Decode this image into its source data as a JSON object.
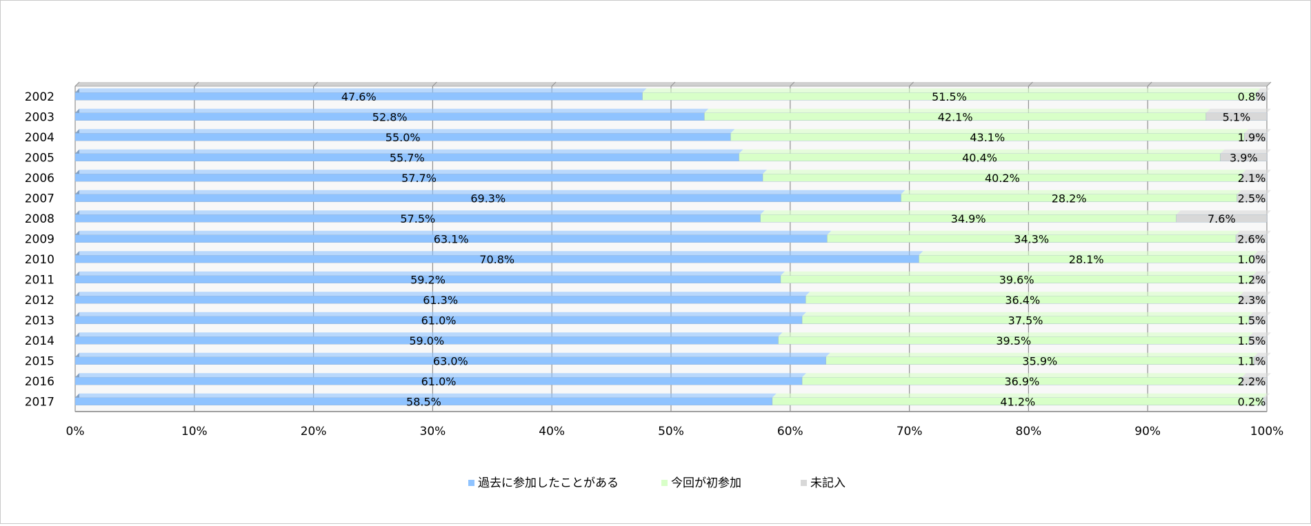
{
  "chart_data": {
    "type": "bar",
    "orientation": "horizontal",
    "stacked": "percent",
    "categories": [
      "2002",
      "2003",
      "2004",
      "2005",
      "2006",
      "2007",
      "2008",
      "2009",
      "2010",
      "2011",
      "2012",
      "2013",
      "2014",
      "2015",
      "2016",
      "2017"
    ],
    "series": [
      {
        "name": "過去に参加したことがある",
        "color": "#8fc3ff",
        "values": [
          47.6,
          52.8,
          55.0,
          55.7,
          57.7,
          69.3,
          57.5,
          63.1,
          70.8,
          59.2,
          61.3,
          61.0,
          59.0,
          63.0,
          61.0,
          58.5
        ],
        "labels": [
          "47.6%",
          "52.8%",
          "55.0%",
          "55.7%",
          "57.7%",
          "69.3%",
          "57.5%",
          "63.1%",
          "70.8%",
          "59.2%",
          "61.3%",
          "61.0%",
          "59.0%",
          "63.0%",
          "61.0%",
          "58.5%"
        ]
      },
      {
        "name": "今回が初参加",
        "color": "#d8ffc8",
        "values": [
          51.5,
          42.1,
          43.1,
          40.4,
          40.2,
          28.2,
          34.9,
          34.3,
          28.1,
          39.6,
          36.4,
          37.5,
          39.5,
          35.9,
          36.9,
          41.2
        ],
        "labels": [
          "51.5%",
          "42.1%",
          "43.1%",
          "40.4%",
          "40.2%",
          "28.2%",
          "34.9%",
          "34.3%",
          "28.1%",
          "39.6%",
          "36.4%",
          "37.5%",
          "39.5%",
          "35.9%",
          "36.9%",
          "41.2%"
        ]
      },
      {
        "name": "未記入",
        "color": "#d8d8d8",
        "values": [
          0.8,
          5.1,
          1.9,
          3.9,
          2.1,
          2.5,
          7.6,
          2.6,
          1.0,
          1.2,
          2.3,
          1.5,
          1.5,
          1.1,
          2.2,
          0.2
        ],
        "labels": [
          "0.8%",
          "5.1%",
          "1.9%",
          "3.9%",
          "2.1%",
          "2.5%",
          "7.6%",
          "2.6%",
          "1.0%",
          "1.2%",
          "2.3%",
          "1.5%",
          "1.5%",
          "1.1%",
          "2.2%",
          "0.2%"
        ]
      }
    ],
    "xticks": [
      "0%",
      "10%",
      "20%",
      "30%",
      "40%",
      "50%",
      "60%",
      "70%",
      "80%",
      "90%",
      "100%"
    ],
    "xlim": [
      0,
      100
    ],
    "grid": true,
    "legend": "bottom-center"
  }
}
